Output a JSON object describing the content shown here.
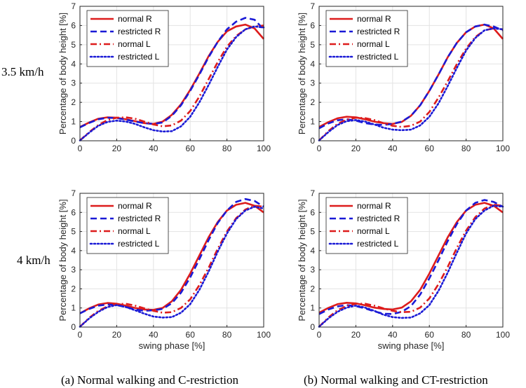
{
  "row_labels": [
    "3.5 km/h",
    "4 km/h"
  ],
  "captions": [
    "(a) Normal walking and C-restriction",
    "(b) Normal walking and CT-restriction"
  ],
  "series_styles": [
    {
      "name": "normal R",
      "color": "#dd1c1c",
      "dash": "solid"
    },
    {
      "name": "restricted R",
      "color": "#1a1ad6",
      "dash": "dashed"
    },
    {
      "name": "normal L",
      "color": "#dd1c1c",
      "dash": "dashdot"
    },
    {
      "name": "restricted L",
      "color": "#1a1ad6",
      "dash": "dotted"
    }
  ],
  "chart_data": [
    {
      "type": "line",
      "title": "",
      "xlabel": "",
      "ylabel": "Percentage of body height [%]",
      "xlim": [
        0,
        100
      ],
      "ylim": [
        0,
        7
      ],
      "xticks": [
        0,
        20,
        40,
        60,
        80,
        100
      ],
      "yticks": [
        0,
        1,
        2,
        3,
        4,
        5,
        6,
        7
      ],
      "grid": true,
      "legend": "top-left",
      "x": [
        0,
        5,
        10,
        15,
        20,
        25,
        30,
        35,
        40,
        45,
        50,
        55,
        60,
        65,
        70,
        75,
        80,
        85,
        90,
        95,
        100
      ],
      "series": [
        {
          "name": "normal R",
          "values": [
            0.72,
            0.95,
            1.15,
            1.22,
            1.2,
            1.12,
            1.02,
            0.92,
            0.88,
            1.0,
            1.35,
            1.9,
            2.65,
            3.5,
            4.4,
            5.15,
            5.7,
            5.95,
            6.05,
            5.85,
            5.3
          ]
        },
        {
          "name": "restricted R",
          "values": [
            0.7,
            0.93,
            1.12,
            1.2,
            1.18,
            1.1,
            1.0,
            0.92,
            0.88,
            0.95,
            1.3,
            1.85,
            2.6,
            3.45,
            4.35,
            5.15,
            5.8,
            6.2,
            6.4,
            6.3,
            5.8
          ]
        },
        {
          "name": "normal L",
          "values": [
            0.02,
            0.45,
            0.82,
            1.08,
            1.2,
            1.22,
            1.15,
            1.0,
            0.85,
            0.75,
            0.8,
            1.05,
            1.55,
            2.3,
            3.2,
            4.1,
            4.9,
            5.45,
            5.8,
            5.95,
            6.0
          ]
        },
        {
          "name": "restricted L",
          "values": [
            0.02,
            0.42,
            0.78,
            0.98,
            1.05,
            1.0,
            0.88,
            0.7,
            0.55,
            0.48,
            0.5,
            0.75,
            1.25,
            2.0,
            2.9,
            3.85,
            4.75,
            5.4,
            5.8,
            5.95,
            5.9
          ]
        }
      ]
    },
    {
      "type": "line",
      "title": "",
      "xlabel": "",
      "ylabel": "Percentage of body height [%]",
      "xlim": [
        0,
        100
      ],
      "ylim": [
        0,
        7
      ],
      "xticks": [
        0,
        20,
        40,
        60,
        80,
        100
      ],
      "yticks": [
        0,
        1,
        2,
        3,
        4,
        5,
        6,
        7
      ],
      "grid": true,
      "legend": "top-left",
      "x": [
        0,
        5,
        10,
        15,
        20,
        25,
        30,
        35,
        40,
        45,
        50,
        55,
        60,
        65,
        70,
        75,
        80,
        85,
        90,
        95,
        100
      ],
      "series": [
        {
          "name": "normal R",
          "values": [
            0.72,
            0.97,
            1.17,
            1.25,
            1.22,
            1.12,
            1.0,
            0.92,
            0.88,
            0.98,
            1.3,
            1.85,
            2.6,
            3.45,
            4.35,
            5.1,
            5.65,
            5.95,
            6.05,
            5.85,
            5.3
          ]
        },
        {
          "name": "restricted R",
          "values": [
            0.65,
            0.9,
            1.07,
            1.12,
            1.05,
            0.92,
            0.85,
            0.82,
            0.88,
            1.0,
            1.3,
            1.85,
            2.6,
            3.45,
            4.35,
            5.1,
            5.65,
            5.95,
            6.05,
            5.95,
            5.75
          ]
        },
        {
          "name": "normal L",
          "values": [
            0.02,
            0.5,
            0.88,
            1.1,
            1.2,
            1.18,
            1.08,
            0.92,
            0.78,
            0.72,
            0.78,
            1.0,
            1.5,
            2.25,
            3.1,
            4.0,
            4.8,
            5.4,
            5.75,
            5.85,
            5.8
          ]
        },
        {
          "name": "restricted L",
          "values": [
            0.02,
            0.45,
            0.82,
            1.02,
            1.08,
            1.0,
            0.85,
            0.68,
            0.58,
            0.55,
            0.58,
            0.8,
            1.25,
            1.95,
            2.85,
            3.8,
            4.7,
            5.35,
            5.75,
            5.85,
            5.8
          ]
        }
      ]
    },
    {
      "type": "line",
      "title": "",
      "xlabel": "swing phase [%]",
      "ylabel": "Percentage of body height [%]",
      "xlim": [
        0,
        100
      ],
      "ylim": [
        0,
        7
      ],
      "xticks": [
        0,
        20,
        40,
        60,
        80,
        100
      ],
      "yticks": [
        0,
        1,
        2,
        3,
        4,
        5,
        6,
        7
      ],
      "grid": true,
      "legend": "top-left",
      "x": [
        0,
        5,
        10,
        15,
        20,
        25,
        30,
        35,
        40,
        45,
        50,
        55,
        60,
        65,
        70,
        75,
        80,
        85,
        90,
        95,
        100
      ],
      "series": [
        {
          "name": "normal R",
          "values": [
            0.72,
            0.98,
            1.18,
            1.26,
            1.22,
            1.12,
            1.0,
            0.92,
            0.9,
            1.0,
            1.35,
            1.95,
            2.8,
            3.75,
            4.7,
            5.5,
            6.1,
            6.4,
            6.5,
            6.35,
            6.0
          ]
        },
        {
          "name": "restricted R",
          "values": [
            0.72,
            0.95,
            1.12,
            1.18,
            1.15,
            1.05,
            0.92,
            0.85,
            0.88,
            0.95,
            1.25,
            1.8,
            2.6,
            3.55,
            4.55,
            5.45,
            6.1,
            6.55,
            6.7,
            6.6,
            6.3
          ]
        },
        {
          "name": "normal L",
          "values": [
            0.02,
            0.48,
            0.85,
            1.08,
            1.2,
            1.22,
            1.12,
            0.98,
            0.85,
            0.75,
            0.78,
            1.0,
            1.45,
            2.2,
            3.1,
            4.1,
            5.0,
            5.7,
            6.15,
            6.35,
            6.3
          ]
        },
        {
          "name": "restricted L",
          "values": [
            0.02,
            0.45,
            0.8,
            1.05,
            1.15,
            1.05,
            0.88,
            0.7,
            0.55,
            0.5,
            0.52,
            0.75,
            1.2,
            1.95,
            2.9,
            3.95,
            4.9,
            5.65,
            6.1,
            6.3,
            6.2
          ]
        }
      ]
    },
    {
      "type": "line",
      "title": "",
      "xlabel": "swing phase [%]",
      "ylabel": "Percentage of body height [%]",
      "xlim": [
        0,
        100
      ],
      "ylim": [
        0,
        7
      ],
      "xticks": [
        0,
        20,
        40,
        60,
        80,
        100
      ],
      "yticks": [
        0,
        1,
        2,
        3,
        4,
        5,
        6,
        7
      ],
      "grid": true,
      "legend": "top-left",
      "x": [
        0,
        5,
        10,
        15,
        20,
        25,
        30,
        35,
        40,
        45,
        50,
        55,
        60,
        65,
        70,
        75,
        80,
        85,
        90,
        95,
        100
      ],
      "series": [
        {
          "name": "normal R",
          "values": [
            0.75,
            1.0,
            1.2,
            1.27,
            1.24,
            1.14,
            1.02,
            0.95,
            0.92,
            1.02,
            1.35,
            1.95,
            2.8,
            3.75,
            4.7,
            5.5,
            6.1,
            6.4,
            6.5,
            6.35,
            6.0
          ]
        },
        {
          "name": "restricted R",
          "values": [
            0.68,
            0.92,
            1.08,
            1.15,
            1.1,
            0.98,
            0.82,
            0.7,
            0.68,
            0.8,
            1.1,
            1.7,
            2.55,
            3.5,
            4.5,
            5.4,
            6.1,
            6.5,
            6.65,
            6.55,
            6.3
          ]
        },
        {
          "name": "normal L",
          "values": [
            0.02,
            0.5,
            0.88,
            1.1,
            1.22,
            1.22,
            1.12,
            0.98,
            0.85,
            0.78,
            0.8,
            1.02,
            1.5,
            2.25,
            3.15,
            4.15,
            5.05,
            5.75,
            6.2,
            6.4,
            6.35
          ]
        },
        {
          "name": "restricted L",
          "values": [
            0.02,
            0.45,
            0.8,
            1.02,
            1.12,
            1.02,
            0.85,
            0.65,
            0.52,
            0.48,
            0.5,
            0.72,
            1.15,
            1.9,
            2.85,
            3.9,
            4.9,
            5.65,
            6.1,
            6.35,
            6.3
          ]
        }
      ]
    }
  ]
}
